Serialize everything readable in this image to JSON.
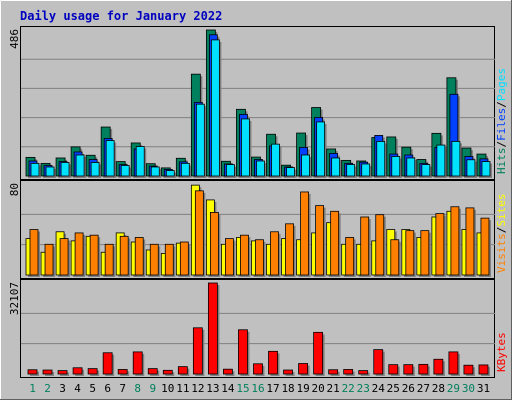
{
  "colors": {
    "background": "#c0c0c0",
    "title": "#0000c0",
    "hits": "#00805c",
    "files": "#0040ff",
    "pages": "#00e0ff",
    "visits": "#ff8000",
    "sites": "#ffff00",
    "kbytes": "#ff0000",
    "day_normal": "#000000",
    "day_weekend": "#00805c",
    "grid": "#808080"
  },
  "chart_data": {
    "type": "bar",
    "title": "Daily usage for January 2022",
    "days": [
      "1",
      "2",
      "3",
      "4",
      "5",
      "6",
      "7",
      "8",
      "9",
      "10",
      "11",
      "12",
      "13",
      "14",
      "15",
      "16",
      "17",
      "18",
      "19",
      "20",
      "21",
      "22",
      "23",
      "24",
      "25",
      "26",
      "27",
      "28",
      "29",
      "30",
      "31"
    ],
    "weekend_days": [
      1,
      2,
      8,
      9,
      15,
      16,
      22,
      23,
      29,
      30
    ],
    "panels": [
      {
        "name": "hits-files-pages",
        "ymax_label": "486",
        "ymax": 486,
        "legend": [
          {
            "label": "Hits",
            "color": "#00805c"
          },
          {
            "label": "/",
            "color": "#000000"
          },
          {
            "label": "Files",
            "color": "#0040ff"
          },
          {
            "label": "/",
            "color": "#000000"
          },
          {
            "label": "Pages",
            "color": "#00e0ff"
          }
        ],
        "series": [
          {
            "name": "Hits",
            "values": [
              62,
              42,
              60,
              97,
              69,
              163,
              48,
              110,
              41,
              27,
              59,
              339,
              486,
              49,
              222,
              63,
              139,
              36,
              143,
              228,
              90,
              52,
              50,
              128,
              130,
              96,
              55,
              142,
              327,
              93,
              73
            ]
          },
          {
            "name": "Files",
            "values": [
              50,
              35,
              48,
              80,
              55,
              125,
              38,
              90,
              33,
              22,
              47,
              245,
              470,
              40,
              205,
              55,
              100,
              30,
              95,
              195,
              75,
              42,
              46,
              135,
              73,
              70,
              42,
              95,
              272,
              65,
              57
            ]
          },
          {
            "name": "Pages",
            "values": [
              42,
              30,
              45,
              70,
              45,
              118,
              35,
              98,
              30,
              18,
              42,
              239,
              453,
              38,
              190,
              50,
              106,
              28,
              70,
              180,
              60,
              38,
              40,
              115,
              65,
              60,
              38,
              103,
              115,
              54,
              48
            ]
          }
        ]
      },
      {
        "name": "visits-sites",
        "ymax_label": "80",
        "ymax": 80,
        "legend": [
          {
            "label": "Visits",
            "color": "#ff8000"
          },
          {
            "label": "/",
            "color": "#000000"
          },
          {
            "label": "Sites",
            "color": "#ffff00"
          }
        ],
        "series": [
          {
            "name": "Visits",
            "values": [
              40,
              27,
              32,
              37,
              35,
              27,
              34,
              33,
              27,
              27,
              29,
              74,
              55,
              32,
              35,
              31,
              38,
              45,
              73,
              61,
              56,
              33,
              51,
              53,
              31,
              39,
              39,
              54,
              60,
              59,
              50
            ]
          },
          {
            "name": "Sites",
            "values": [
              32,
              20,
              38,
              30,
              34,
              20,
              37,
              29,
              22,
              19,
              28,
              79,
              66,
              27,
              33,
              30,
              27,
              32,
              31,
              37,
              46,
              27,
              27,
              30,
              40,
              40,
              33,
              51,
              56,
              40,
              37
            ]
          }
        ]
      },
      {
        "name": "kbytes",
        "ymax_label": "32107",
        "ymax": 32107,
        "legend": [
          {
            "label": "KBytes",
            "color": "#ff0000"
          }
        ],
        "series": [
          {
            "name": "KBytes",
            "values": [
              1500,
              1400,
              1200,
              2200,
              1900,
              7500,
              1600,
              7800,
              1900,
              1300,
              2600,
              16300,
              32107,
              1700,
              15600,
              3600,
              8000,
              1400,
              3700,
              14700,
              1500,
              1600,
              1200,
              8600,
              3300,
              3300,
              3400,
              5200,
              7800,
              3100,
              3200
            ]
          }
        ]
      }
    ]
  }
}
